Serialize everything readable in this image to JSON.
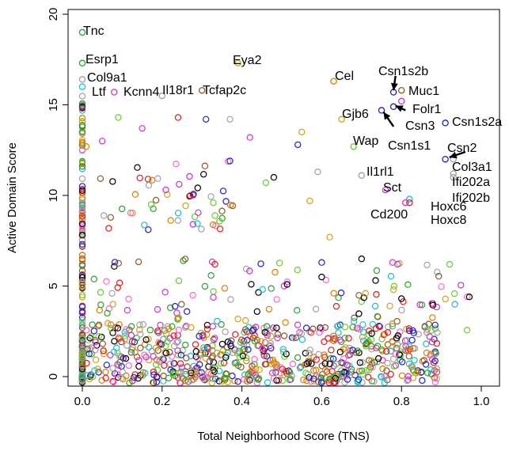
{
  "chart_data": {
    "type": "scatter",
    "xlabel": "Total Neighborhood Score (TNS)",
    "ylabel": "Active Domain Score",
    "xlim": [
      0,
      1.0
    ],
    "ylim": [
      0,
      20
    ],
    "xticks": [
      {
        "value": 0,
        "label": "0.0"
      },
      {
        "value": 0.2,
        "label": "0.2"
      },
      {
        "value": 0.4,
        "label": "0.4"
      },
      {
        "value": 0.6,
        "label": "0.6"
      },
      {
        "value": 0.8,
        "label": "0.8"
      },
      {
        "value": 1.0,
        "label": "1.0"
      }
    ],
    "yticks": [
      {
        "value": 0,
        "label": "0"
      },
      {
        "value": 5,
        "label": "5"
      },
      {
        "value": 10,
        "label": "10"
      },
      {
        "value": 15,
        "label": "15"
      },
      {
        "value": 20,
        "label": "20"
      }
    ],
    "grid": false,
    "marker": "open-circle",
    "point_colors": [
      "#000000",
      "#e41a1c",
      "#2ca02c",
      "#1f1fcf",
      "#17becf",
      "#cc33cc",
      "#d4a017",
      "#a0a0a0",
      "#e07b00",
      "#8b5a2b",
      "#66cc33",
      "#ff66cc"
    ],
    "highlighted_points": [
      {
        "name": "Tnc",
        "x": 0.0,
        "y": 19.0,
        "color": "#2ca02c"
      },
      {
        "name": "Esrp1",
        "x": 0.0,
        "y": 17.3,
        "color": "#2ca02c"
      },
      {
        "name": "Col9a1",
        "x": 0.0,
        "y": 16.4,
        "color": "#a0a0a0"
      },
      {
        "name": "Ltf",
        "x": 0.0,
        "y": 16.0,
        "color": "#17becf"
      },
      {
        "name": "Kcnn4",
        "x": 0.08,
        "y": 15.7,
        "color": "#cc33cc"
      },
      {
        "name": "Il18r1",
        "x": 0.2,
        "y": 15.5,
        "color": "#a0a0a0"
      },
      {
        "name": "Tcfap2c",
        "x": 0.3,
        "y": 15.8,
        "color": "#8b5a2b"
      },
      {
        "name": "Eya2",
        "x": 0.39,
        "y": 17.3,
        "color": "#d4a017"
      },
      {
        "name": "Cel",
        "x": 0.63,
        "y": 16.3,
        "color": "#e07b00"
      },
      {
        "name": "Csn1s2b",
        "x": 0.78,
        "y": 15.7,
        "color": "#1f1fcf"
      },
      {
        "name": "Muc1",
        "x": 0.8,
        "y": 15.8,
        "color": "#8b5a2b"
      },
      {
        "name": "Folr1",
        "x": 0.8,
        "y": 15.2,
        "color": "#cc33cc"
      },
      {
        "name": "Csn3",
        "x": 0.78,
        "y": 14.9,
        "color": "#1f1fcf"
      },
      {
        "name": "Csn1s1",
        "x": 0.75,
        "y": 14.7,
        "color": "#1f1fcf"
      },
      {
        "name": "Gjb6",
        "x": 0.65,
        "y": 14.2,
        "color": "#d4a017"
      },
      {
        "name": "Csn1s2a",
        "x": 0.91,
        "y": 14.0,
        "color": "#1f1fcf"
      },
      {
        "name": "Wap",
        "x": 0.68,
        "y": 12.7,
        "color": "#66cc33"
      },
      {
        "name": "Csn2",
        "x": 0.91,
        "y": 12.0,
        "color": "#1f1fcf"
      },
      {
        "name": "Col3a1",
        "x": 0.93,
        "y": 12.0,
        "color": "#a0a0a0"
      },
      {
        "name": "Ifi202a",
        "x": 0.93,
        "y": 11.2,
        "color": "#a0a0a0"
      },
      {
        "name": "Ifi202b",
        "x": 0.93,
        "y": 11.0,
        "color": "#a0a0a0"
      },
      {
        "name": "Il1rl1",
        "x": 0.7,
        "y": 11.1,
        "color": "#a0a0a0"
      },
      {
        "name": "Sct",
        "x": 0.76,
        "y": 10.3,
        "color": "#cc33cc"
      },
      {
        "name": "Hoxc6",
        "x": 0.82,
        "y": 9.8,
        "color": "#17becf"
      },
      {
        "name": "Hoxc8",
        "x": 0.82,
        "y": 9.6,
        "color": "#e41a1c"
      },
      {
        "name": "Cd200",
        "x": 0.81,
        "y": 9.6,
        "color": "#cc33cc"
      }
    ],
    "annotations": [
      {
        "text": "Tnc"
      },
      {
        "text": "Esrp1"
      },
      {
        "text": "Col9a1"
      },
      {
        "text": "Ltf"
      },
      {
        "text": "Kcnn4"
      },
      {
        "text": "Il18r1"
      },
      {
        "text": "Tcfap2c"
      },
      {
        "text": "Eya2"
      },
      {
        "text": "Cel"
      },
      {
        "text": "Csn1s2b"
      },
      {
        "text": "Muc1"
      },
      {
        "text": "Folr1"
      },
      {
        "text": "Gjb6"
      },
      {
        "text": "Csn3"
      },
      {
        "text": "Csn1s2a"
      },
      {
        "text": "Wap"
      },
      {
        "text": "Csn1s1"
      },
      {
        "text": "Csn2"
      },
      {
        "text": "Il1rl1"
      },
      {
        "text": "Col3a1"
      },
      {
        "text": "Sct"
      },
      {
        "text": "Ifi202a"
      },
      {
        "text": "Ifi202b"
      },
      {
        "text": "Hoxc6"
      },
      {
        "text": "Cd200"
      },
      {
        "text": "Hoxc8"
      }
    ],
    "arrows": [
      {
        "label": "Csn1s2b",
        "from": [
          0.785,
          16.6
        ],
        "to": [
          0.78,
          15.8
        ]
      },
      {
        "label": "Csn3",
        "from": [
          0.81,
          14.7
        ],
        "to": [
          0.785,
          14.95
        ]
      },
      {
        "label": "Csn1s1",
        "from": [
          0.78,
          13.8
        ],
        "to": [
          0.755,
          14.6
        ]
      },
      {
        "label": "Csn2",
        "from": [
          0.96,
          12.4
        ],
        "to": [
          0.92,
          12.1
        ]
      }
    ]
  }
}
